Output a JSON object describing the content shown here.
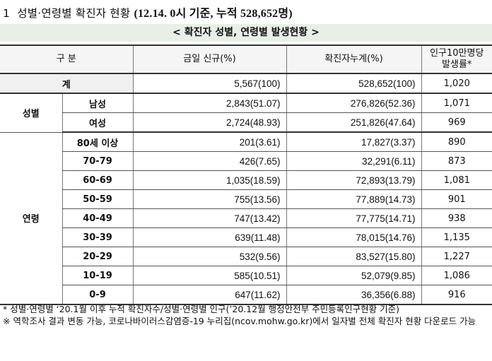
{
  "title": {
    "num": "1",
    "main": "성별·연령별 확진자 현황",
    "sub": "(12.14. 0시 기준, 누적 528,652명)"
  },
  "caption": "< 확진자 성별, 연령별 발생현황 >",
  "headers": {
    "category": "구 분",
    "today": "금일 신규(%)",
    "cumulative": "확진자누계(%)",
    "rate_line1": "인구10만명당",
    "rate_line2": "발생률*"
  },
  "total": {
    "label": "계",
    "today": "5,567(100)",
    "cumulative": "528,652(100)",
    "rate": "1,020"
  },
  "sex": {
    "group": "성별",
    "rows": [
      {
        "label": "남성",
        "today": "2,843(51.07)",
        "cumulative": "276,826(52.36)",
        "rate": "1,071"
      },
      {
        "label": "여성",
        "today": "2,724(48.93)",
        "cumulative": "251,826(47.64)",
        "rate": "969"
      }
    ]
  },
  "age": {
    "group": "연령",
    "rows": [
      {
        "label": "80세 이상",
        "today": "201(3.61)",
        "cumulative": "17,827(3.37)",
        "rate": "890"
      },
      {
        "label": "70-79",
        "today": "426(7.65)",
        "cumulative": "32,291(6.11)",
        "rate": "873"
      },
      {
        "label": "60-69",
        "today": "1,035(18.59)",
        "cumulative": "72,893(13.79)",
        "rate": "1,081"
      },
      {
        "label": "50-59",
        "today": "755(13.56)",
        "cumulative": "77,889(14.73)",
        "rate": "901"
      },
      {
        "label": "40-49",
        "today": "747(13.42)",
        "cumulative": "77,775(14.71)",
        "rate": "938"
      },
      {
        "label": "30-39",
        "today": "639(11.48)",
        "cumulative": "78,015(14.76)",
        "rate": "1,135"
      },
      {
        "label": "20-29",
        "today": "532(9.56)",
        "cumulative": "83,527(15.80)",
        "rate": "1,227"
      },
      {
        "label": "10-19",
        "today": "585(10.51)",
        "cumulative": "52,079(9.85)",
        "rate": "1,086"
      },
      {
        "label": "0-9",
        "today": "647(11.62)",
        "cumulative": "36,356(6.88)",
        "rate": "916"
      }
    ]
  },
  "notes": [
    "* 성별·연령별 ‘20.1월 이후 누적 확진자수/성별·연령별 인구(’20.12월 행정안전부 주민등록인구현황 기준)",
    "※ 역학조사 결과 변동 가능, 코로나바이러스감염증-19 누리집(ncov.mohw.go.kr)에서 일자별 전체 확진자 현황 다운로드 가능"
  ]
}
